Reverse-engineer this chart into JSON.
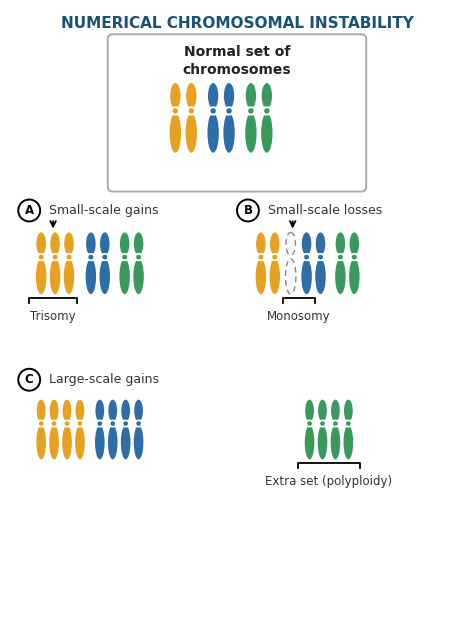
{
  "title": "NUMERICAL CHROMOSOMAL INSTABILITY",
  "title_color": "#1a5276",
  "bg_color": "#ffffff",
  "orange": "#E8A020",
  "blue": "#2E6EA6",
  "green": "#3A9A5C",
  "section_A_label": "A",
  "section_A_text": "Small-scale gains",
  "section_B_label": "B",
  "section_B_text": "Small-scale losses",
  "section_C_label": "C",
  "section_C_text": "Large-scale gains",
  "trisomy_label": "Trisomy",
  "monosomy_label": "Monosomy",
  "polyploidy_label": "Extra set (polyploidy)",
  "normal_box_label": "Normal set of\nchromosomes",
  "fig_w": 4.74,
  "fig_h": 6.42,
  "dpi": 100
}
